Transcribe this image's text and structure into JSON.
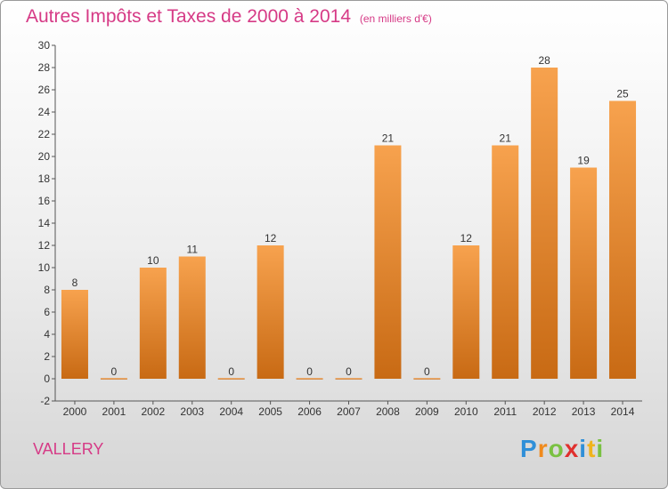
{
  "title": "Autres Impôts et Taxes de 2000 à 2014",
  "subtitle": "(en milliers d'€)",
  "town": "VALLERY",
  "logo": {
    "text": "Proxiti",
    "letters": [
      "P",
      "r",
      "o",
      "x",
      "i",
      "t",
      "i"
    ],
    "colors": [
      "#2f8fd8",
      "#f08a1c",
      "#7ac142",
      "#e0302e",
      "#2f8fd8",
      "#f0b41c",
      "#7ac142"
    ]
  },
  "colors": {
    "accent": "#d63a86",
    "bar_top": "#f7a24e",
    "bar_bottom": "#c86a14"
  },
  "chart_data": {
    "type": "bar",
    "categories": [
      "2000",
      "2001",
      "2002",
      "2003",
      "2004",
      "2005",
      "2006",
      "2007",
      "2008",
      "2009",
      "2010",
      "2011",
      "2012",
      "2013",
      "2014"
    ],
    "values": [
      8,
      0,
      10,
      11,
      0,
      12,
      0,
      0,
      21,
      0,
      12,
      21,
      28,
      19,
      25
    ],
    "title": "Autres Impôts et Taxes de 2000 à 2014",
    "ylim": [
      -2,
      30
    ],
    "yticks": [
      -2,
      0,
      2,
      4,
      6,
      8,
      10,
      12,
      14,
      16,
      18,
      20,
      22,
      24,
      26,
      28,
      30
    ],
    "grid": false,
    "data_labels": true
  }
}
